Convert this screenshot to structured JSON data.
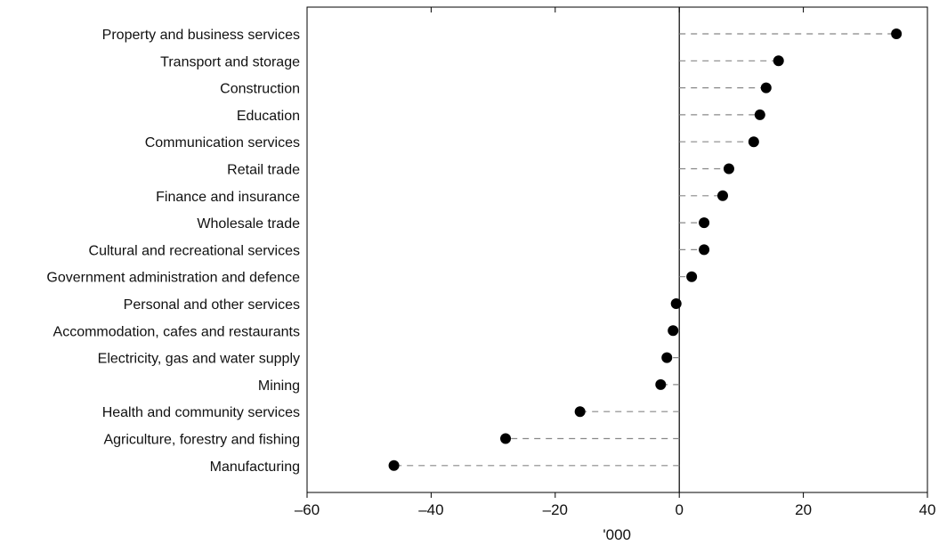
{
  "chart_data": {
    "type": "scatter",
    "orientation": "horizontal-dot-plot",
    "title": "",
    "xlabel": "'000",
    "ylabel": "",
    "xlim": [
      -60,
      40
    ],
    "xticks": [
      -60,
      -40,
      -20,
      0,
      20,
      40
    ],
    "xtick_labels": [
      "–60",
      "–40",
      "–20",
      "0",
      "20",
      "40"
    ],
    "grid": false,
    "legend": "none",
    "categories": [
      "Property and business services",
      "Transport and storage",
      "Construction",
      "Education",
      "Communication services",
      "Retail trade",
      "Finance and insurance",
      "Wholesale trade",
      "Cultural and recreational services",
      "Government administration and defence",
      "Personal and other services",
      "Accommodation, cafes and restaurants",
      "Electricity, gas and water supply",
      "Mining",
      "Health and community services",
      "Agriculture, forestry and fishing",
      "Manufacturing"
    ],
    "values": [
      35,
      16,
      14,
      13,
      12,
      8,
      7,
      4,
      4,
      2,
      -0.5,
      -1,
      -2,
      -3,
      -16,
      -28,
      -46
    ],
    "colors": {
      "marker": "#000000",
      "connector": "#888888",
      "axis": "#000000"
    }
  }
}
